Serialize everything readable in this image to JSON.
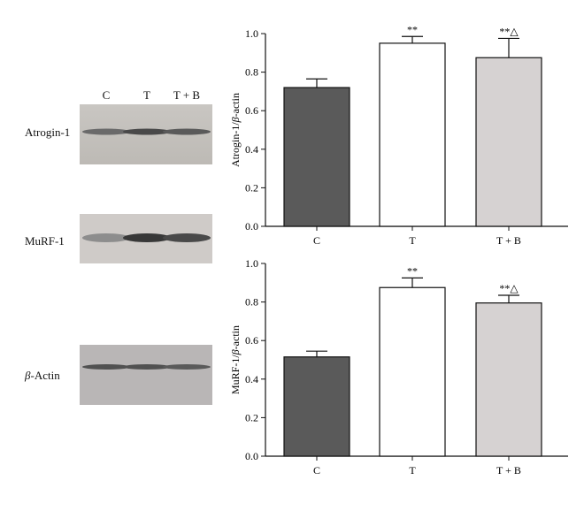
{
  "blot": {
    "lanes": [
      "C",
      "T",
      "T + B"
    ],
    "rows": [
      {
        "label": "Atrogin-1",
        "label_style": "normal"
      },
      {
        "label": "MuRF-1",
        "label_style": "normal"
      },
      {
        "label_prefix": "β",
        "label": "-Actin",
        "label_style": "italic-prefix"
      }
    ],
    "band_intensities": {
      "Atrogin-1": [
        0.55,
        0.75,
        0.65
      ],
      "MuRF-1": [
        0.35,
        0.85,
        0.75
      ],
      "β-Actin": [
        0.7,
        0.7,
        0.65
      ]
    }
  },
  "chart_data": [
    {
      "type": "bar",
      "categories": [
        "C",
        "T",
        "T + B"
      ],
      "values": [
        0.72,
        0.95,
        0.875
      ],
      "errors": [
        0.045,
        0.035,
        0.1
      ],
      "annotations": [
        "",
        "**",
        "**△"
      ],
      "ylabel_prefix": "Atrogin-1/",
      "ylabel_italic": "β",
      "ylabel_suffix": "-actin",
      "ylim": [
        0,
        1.0
      ],
      "yticks": [
        "0.0",
        "0.2",
        "0.4",
        "0.6",
        "0.8",
        "1.0"
      ],
      "bar_colors": [
        "#5a5a5a",
        "#ffffff",
        "#d6d2d2"
      ]
    },
    {
      "type": "bar",
      "categories": [
        "C",
        "T",
        "T + B"
      ],
      "values": [
        0.515,
        0.875,
        0.795
      ],
      "errors": [
        0.03,
        0.05,
        0.04
      ],
      "annotations": [
        "",
        "**",
        "**△"
      ],
      "ylabel_prefix": "MuRF-1/",
      "ylabel_italic": "β",
      "ylabel_suffix": "-actin",
      "ylim": [
        0,
        1.0
      ],
      "yticks": [
        "0.0",
        "0.2",
        "0.4",
        "0.6",
        "0.8",
        "1.0"
      ],
      "bar_colors": [
        "#5a5a5a",
        "#ffffff",
        "#d6d2d2"
      ]
    }
  ]
}
